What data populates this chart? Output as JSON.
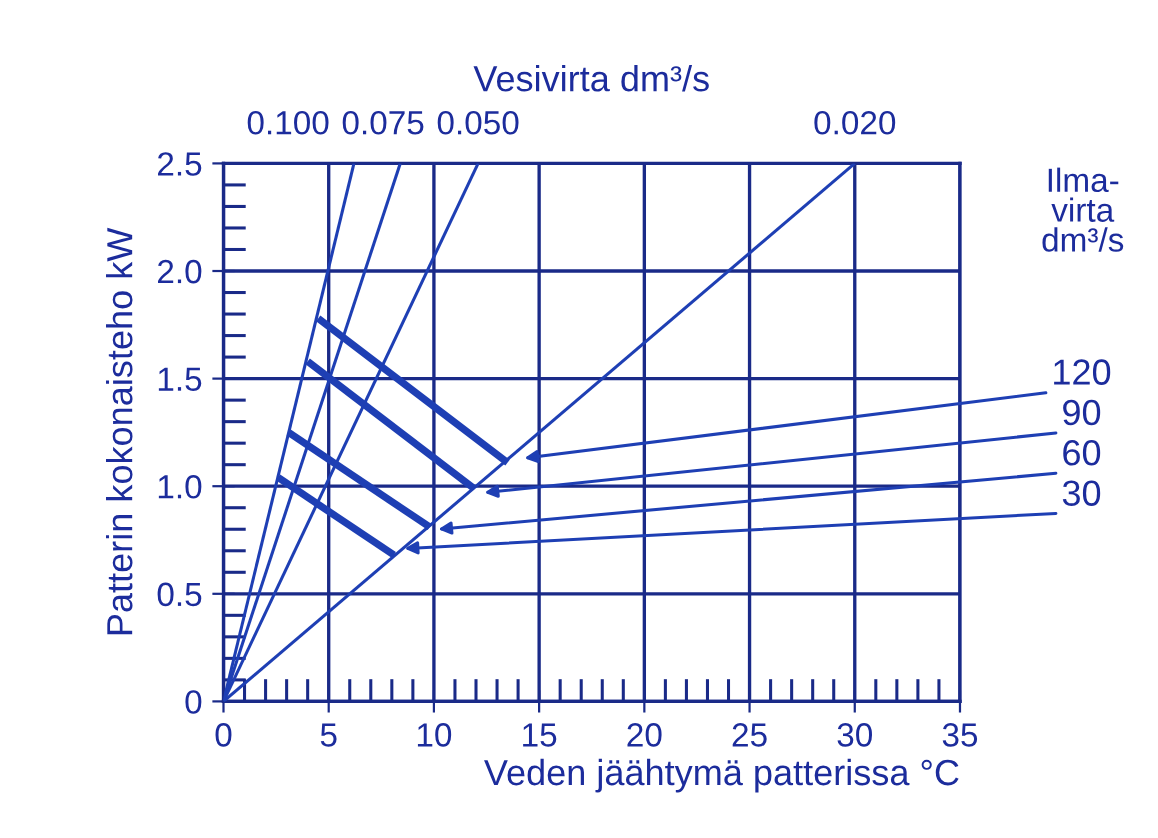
{
  "chart_data": {
    "type": "line",
    "xlabel": "Veden jäähtymä patterissa °C",
    "ylabel": "Patterin kokonaisteho kW",
    "x2label": "Vesivirta dm³/s",
    "legend_title": "Ilma-\nvirta\ndm³/s",
    "xlim": [
      0,
      35
    ],
    "xticks": [
      0,
      5,
      10,
      15,
      20,
      25,
      30,
      35
    ],
    "ylim": [
      0,
      2.5
    ],
    "yticks": [
      0,
      0.5,
      {
        "value": 1,
        "label": "1.0"
      },
      1.5,
      {
        "value": 2,
        "label": "2.0"
      },
      2.5
    ],
    "grid": true,
    "line_style": "solid",
    "series": [
      {
        "name": "0.100",
        "color": "#1e3fb4",
        "x": [
          0,
          6.2
        ],
        "values": [
          0,
          2.5
        ]
      },
      {
        "name": "0.075",
        "color": "#1e3fb4",
        "x": [
          0,
          8.4
        ],
        "values": [
          0,
          2.5
        ]
      },
      {
        "name": "0.050",
        "color": "#1e3fb4",
        "x": [
          0,
          12.1
        ],
        "values": [
          0,
          2.5
        ]
      },
      {
        "name": "0.020",
        "color": "#1e3fb4",
        "x": [
          0,
          30
        ],
        "values": [
          0,
          2.5
        ]
      },
      {
        "color": "#1e3fb4",
        "x": [
          4.5,
          13.5
        ],
        "values": [
          1.78,
          1.11
        ]
      },
      {
        "color": "#1e3fb4",
        "x": [
          4.0,
          11.9
        ],
        "values": [
          1.58,
          0.99
        ]
      },
      {
        "color": "#1e3fb4",
        "x": [
          3.1,
          9.8
        ],
        "values": [
          1.25,
          0.81
        ]
      },
      {
        "color": "#1e3fb4",
        "x": [
          2.6,
          8.1
        ],
        "values": [
          1.04,
          0.68
        ]
      }
    ],
    "annotations": [
      {
        "text": "120",
        "x": 14.3,
        "y": 1.13
      },
      {
        "text": "90",
        "x": 12.4,
        "y": 0.97
      },
      {
        "text": "60",
        "x": 10.2,
        "y": 0.8
      },
      {
        "text": "30",
        "x": 8.6,
        "y": 0.71
      }
    ]
  }
}
